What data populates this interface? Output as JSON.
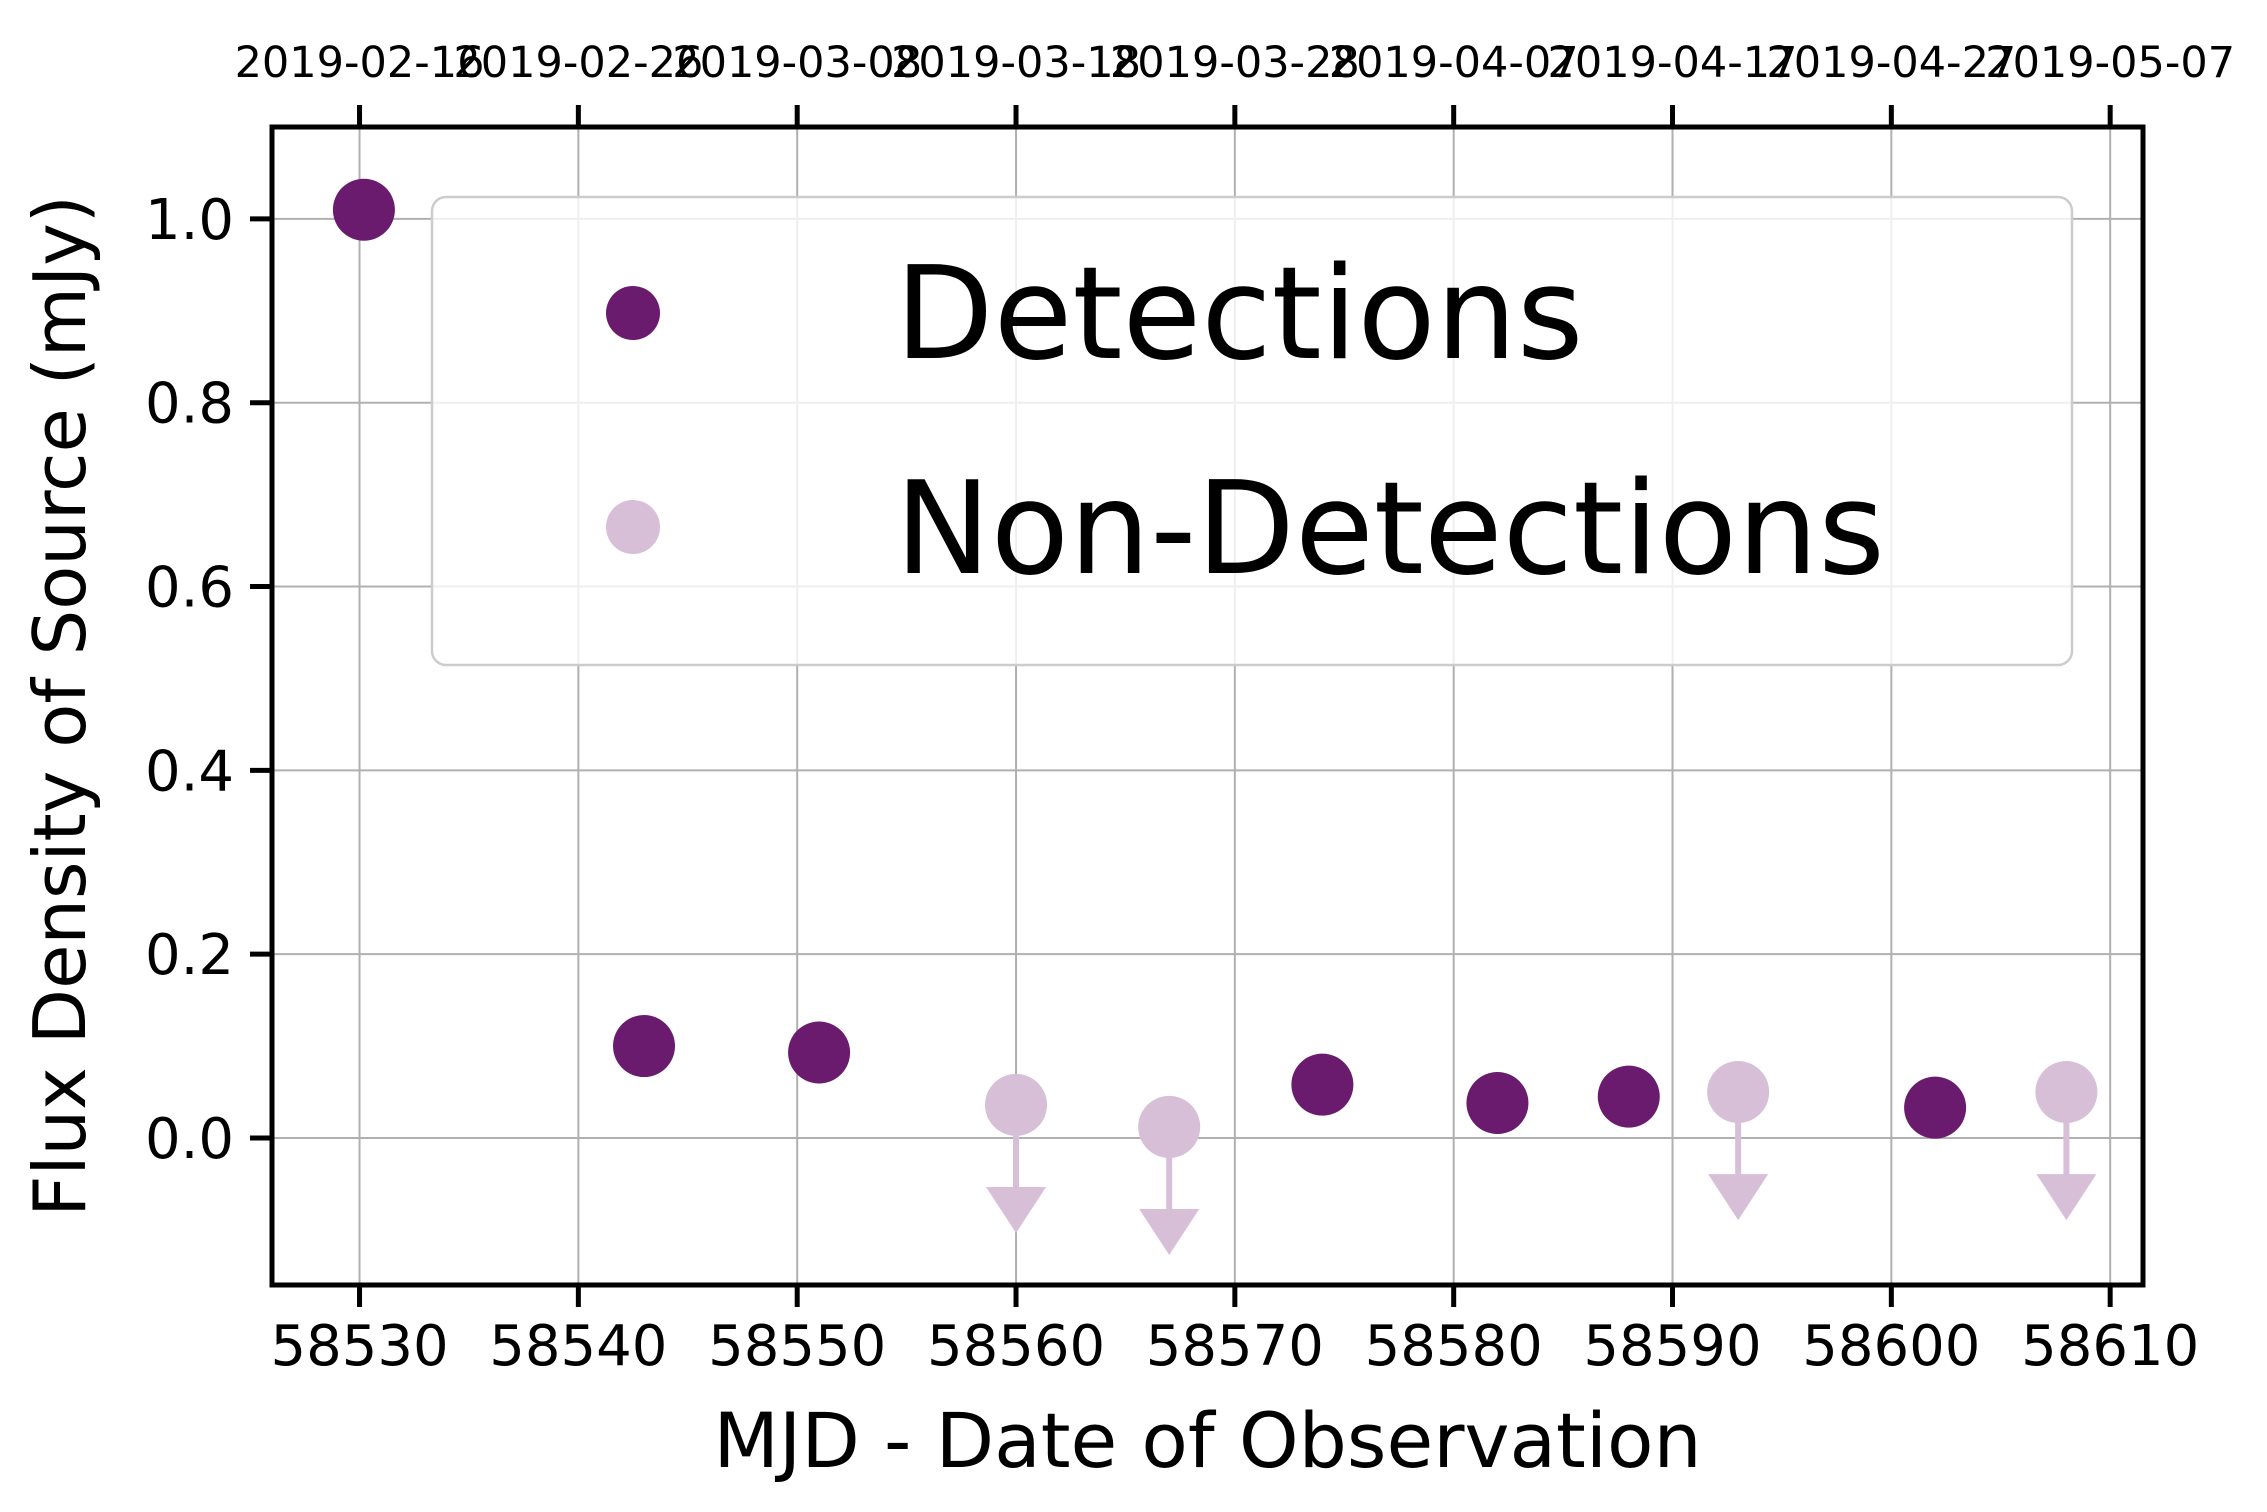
{
  "chart_data": {
    "type": "scatter",
    "xlabel": "MJD - Date of Observation",
    "ylabel": "Flux Density of Source (mJy)",
    "xlim": [
      58526,
      58611.5
    ],
    "ylim": [
      -0.16,
      1.1
    ],
    "grid": true,
    "legend_placement": "upper-right",
    "x_ticks": [
      58530,
      58540,
      58550,
      58560,
      58570,
      58580,
      58590,
      58600,
      58610
    ],
    "y_ticks": [
      0.0,
      0.2,
      0.4,
      0.6,
      0.8,
      1.0
    ],
    "y_tick_labels": [
      "0.0",
      "0.2",
      "0.4",
      "0.6",
      "0.8",
      "1.0"
    ],
    "top_axis": {
      "tick_positions": [
        58530,
        58540,
        58550,
        58560,
        58570,
        58580,
        58590,
        58600,
        58610
      ],
      "tick_labels": [
        "2019-02-16",
        "2019-02-26",
        "2019-03-08",
        "2019-03-18",
        "2019-03-28",
        "2019-04-07",
        "2019-04-17",
        "2019-04-27",
        "2019-05-07"
      ]
    },
    "series": [
      {
        "name": "Detections",
        "color": "#6a1b6e",
        "x": [
          58530.2,
          58543.0,
          58551.0,
          58574.0,
          58582.0,
          58588.0,
          58602.0
        ],
        "y": [
          1.01,
          0.1,
          0.093,
          0.058,
          0.038,
          0.045,
          0.033
        ],
        "yerr": [
          0.025,
          0.015,
          0.02,
          0.008,
          0.006,
          0.006,
          0.005
        ]
      },
      {
        "name": "Non-Detections",
        "color": "#d8bfd8",
        "upper_limits": true,
        "x": [
          58560.0,
          58567.0,
          58593.0,
          58608.0
        ],
        "y": [
          0.036,
          0.012,
          0.05,
          0.05
        ]
      }
    ]
  }
}
